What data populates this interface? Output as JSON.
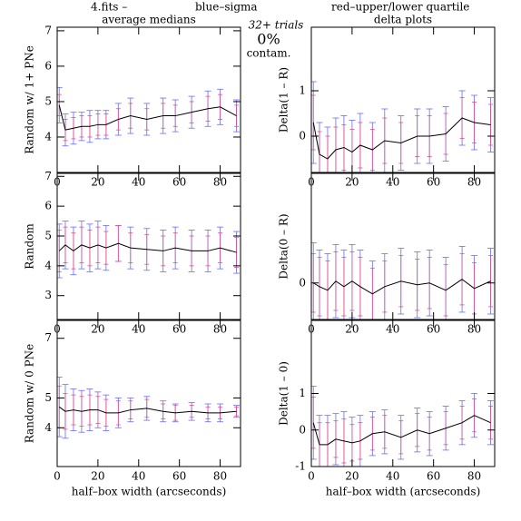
{
  "header": {
    "file": "4.fits  –",
    "blue": "blue–sigma",
    "red": "red–upper/lower quartile",
    "trials": "32+ trials",
    "contam_pct": "0%",
    "contam": "contam.",
    "blue_color": "#6a6aff",
    "red_color": "#e0508a"
  },
  "chart_data": [
    {
      "type": "line",
      "title": "average medians",
      "ylabel": "Random w/ 1+ PNe",
      "color": "#000000",
      "x": [
        1,
        4,
        8,
        12,
        16,
        20,
        24,
        30,
        36,
        44,
        52,
        58,
        66,
        74,
        80,
        88
      ],
      "values": [
        4.9,
        4.2,
        4.25,
        4.3,
        4.3,
        4.35,
        4.35,
        4.5,
        4.6,
        4.5,
        4.6,
        4.6,
        4.7,
        4.8,
        4.85,
        4.6
      ],
      "sigma": [
        0.5,
        0.45,
        0.45,
        0.4,
        0.45,
        0.4,
        0.4,
        0.45,
        0.5,
        0.45,
        0.5,
        0.45,
        0.45,
        0.5,
        0.5,
        0.45
      ],
      "quartile": [
        0.3,
        0.3,
        0.3,
        0.3,
        0.3,
        0.3,
        0.3,
        0.3,
        0.35,
        0.3,
        0.35,
        0.3,
        0.3,
        0.35,
        0.35,
        0.3
      ],
      "xlim": [
        0,
        90
      ],
      "xticks": [
        0,
        20,
        40,
        60,
        80
      ],
      "ylim": [
        3,
        7.1
      ],
      "yticks": [
        4,
        5,
        6,
        7
      ]
    },
    {
      "type": "line",
      "title": "delta plots",
      "ylabel": "Delta(1 – R)",
      "color": "#000000",
      "x": [
        1,
        4,
        8,
        12,
        16,
        20,
        24,
        30,
        36,
        44,
        52,
        58,
        66,
        74,
        80,
        88
      ],
      "values": [
        0.3,
        -0.4,
        -0.5,
        -0.3,
        -0.25,
        -0.35,
        -0.2,
        -0.3,
        -0.1,
        -0.15,
        0,
        0,
        0.05,
        0.4,
        0.3,
        0.25
      ],
      "sigma": [
        0.9,
        0.7,
        0.7,
        0.7,
        0.7,
        0.7,
        0.7,
        0.6,
        0.7,
        0.6,
        0.6,
        0.6,
        0.6,
        0.6,
        0.6,
        0.6
      ],
      "quartile": [
        0.6,
        0.5,
        0.5,
        0.5,
        0.5,
        0.5,
        0.5,
        0.45,
        0.5,
        0.45,
        0.45,
        0.45,
        0.45,
        0.45,
        0.45,
        0.45
      ],
      "xlim": [
        0,
        90
      ],
      "xticks": [
        0,
        20,
        40,
        60,
        80
      ],
      "ylim": [
        -0.8,
        2.4
      ],
      "yticks": [
        0,
        1
      ]
    },
    {
      "type": "line",
      "ylabel": "Random",
      "color": "#000000",
      "x": [
        1,
        4,
        8,
        12,
        16,
        20,
        24,
        30,
        36,
        44,
        52,
        58,
        66,
        74,
        80,
        88
      ],
      "values": [
        4.5,
        4.7,
        4.5,
        4.7,
        4.6,
        4.7,
        4.6,
        4.75,
        4.6,
        4.55,
        4.5,
        4.6,
        4.5,
        4.5,
        4.6,
        4.45
      ],
      "sigma": [
        0.9,
        0.8,
        0.8,
        0.8,
        0.8,
        0.8,
        0.75,
        0.6,
        0.7,
        0.7,
        0.7,
        0.7,
        0.7,
        0.7,
        0.7,
        0.7
      ],
      "quartile": [
        0.7,
        0.6,
        0.6,
        0.6,
        0.6,
        0.6,
        0.55,
        0.6,
        0.5,
        0.5,
        0.5,
        0.5,
        0.5,
        0.5,
        0.5,
        0.5
      ],
      "xlim": [
        0,
        90
      ],
      "xticks": [
        0,
        20,
        40,
        60,
        80
      ],
      "ylim": [
        2.2,
        7.1
      ],
      "yticks": [
        3,
        4,
        5,
        6,
        7
      ]
    },
    {
      "type": "line",
      "ylabel": "Delta(0 – R)",
      "color": "#000000",
      "x": [
        1,
        4,
        8,
        12,
        16,
        20,
        24,
        30,
        36,
        44,
        52,
        58,
        66,
        74,
        80,
        88
      ],
      "values": [
        0,
        -0.1,
        -0.2,
        0.05,
        -0.1,
        0.05,
        -0.1,
        -0.3,
        -0.1,
        0.05,
        -0.05,
        0,
        -0.2,
        0.1,
        -0.15,
        0.05
      ],
      "sigma": [
        1.1,
        1.0,
        1.0,
        1.0,
        1.0,
        1.0,
        1.0,
        0.9,
        0.9,
        0.9,
        0.9,
        0.9,
        0.9,
        0.9,
        0.9,
        0.9
      ],
      "quartile": [
        0.8,
        0.8,
        0.8,
        0.8,
        0.8,
        0.8,
        0.8,
        0.7,
        0.7,
        0.7,
        0.7,
        0.7,
        0.7,
        0.7,
        0.7,
        0.7
      ],
      "xlim": [
        0,
        90
      ],
      "xticks": [
        0,
        20,
        40,
        60,
        80
      ],
      "ylim": [
        -1,
        3
      ],
      "yticks": [
        0
      ]
    },
    {
      "type": "line",
      "ylabel": "Random w/ 0 PNe",
      "xlabel": "half–box width (arcseconds)",
      "color": "#000000",
      "x": [
        1,
        4,
        8,
        12,
        16,
        20,
        24,
        30,
        36,
        44,
        52,
        58,
        66,
        74,
        80,
        88
      ],
      "values": [
        4.7,
        4.55,
        4.6,
        4.55,
        4.6,
        4.6,
        4.5,
        4.5,
        4.6,
        4.65,
        4.55,
        4.5,
        4.55,
        4.5,
        4.5,
        4.55
      ],
      "sigma": [
        1.0,
        0.9,
        0.7,
        0.7,
        0.7,
        0.6,
        0.6,
        0.5,
        0.4,
        0.4,
        0.35,
        0.3,
        0.3,
        0.3,
        0.3,
        0.2
      ],
      "quartile": [
        0.7,
        0.6,
        0.5,
        0.5,
        0.5,
        0.45,
        0.45,
        0.4,
        0.3,
        0.3,
        0.25,
        0.25,
        0.2,
        0.2,
        0.2,
        0.15
      ],
      "xlim": [
        0,
        90
      ],
      "xticks": [
        0,
        20,
        40,
        60,
        80
      ],
      "ylim": [
        2.7,
        7.6
      ],
      "yticks": [
        4,
        5,
        7
      ]
    },
    {
      "type": "line",
      "ylabel": "Delta(1 – 0)",
      "xlabel": "half–box width (arcseconds)",
      "color": "#000000",
      "x": [
        1,
        4,
        8,
        12,
        16,
        20,
        24,
        30,
        36,
        44,
        52,
        58,
        66,
        74,
        80,
        88
      ],
      "values": [
        0.2,
        -0.4,
        -0.4,
        -0.25,
        -0.3,
        -0.35,
        -0.3,
        -0.1,
        -0.05,
        -0.2,
        0,
        -0.1,
        0.05,
        0.2,
        0.4,
        0.2
      ],
      "sigma": [
        1.0,
        0.8,
        0.8,
        0.7,
        0.8,
        0.7,
        0.7,
        0.6,
        0.6,
        0.6,
        0.6,
        0.6,
        0.6,
        0.6,
        0.6,
        0.6
      ],
      "quartile": [
        0.7,
        0.6,
        0.6,
        0.5,
        0.6,
        0.5,
        0.5,
        0.45,
        0.45,
        0.45,
        0.45,
        0.45,
        0.45,
        0.45,
        0.45,
        0.45
      ],
      "xlim": [
        0,
        90
      ],
      "xticks": [
        0,
        20,
        40,
        60,
        80
      ],
      "ylim": [
        -1,
        3
      ],
      "yticks": [
        -1,
        0,
        1
      ]
    }
  ]
}
